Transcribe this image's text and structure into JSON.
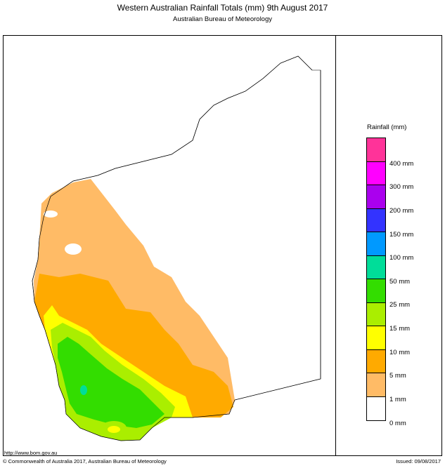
{
  "header": {
    "title": "Western Australian Rainfall Totals (mm) 9th August 2017",
    "subtitle": "Australian Bureau of Meteorology"
  },
  "legend": {
    "title": "Rainfall (mm)",
    "levels": [
      {
        "label": "400 mm",
        "color": "#ff3399"
      },
      {
        "label": "300 mm",
        "color": "#ff00ff"
      },
      {
        "label": "200 mm",
        "color": "#aa00ee"
      },
      {
        "label": "150 mm",
        "color": "#3333ff"
      },
      {
        "label": "100 mm",
        "color": "#0099ff"
      },
      {
        "label": "50 mm",
        "color": "#00dd99"
      },
      {
        "label": "25 mm",
        "color": "#33dd00"
      },
      {
        "label": "15 mm",
        "color": "#aaee00"
      },
      {
        "label": "10 mm",
        "color": "#ffff00"
      },
      {
        "label": "5 mm",
        "color": "#ffaa00"
      },
      {
        "label": "1 mm",
        "color": "#ffbb66"
      },
      {
        "label": "0 mm",
        "color": "#ffffff"
      }
    ]
  },
  "footer": {
    "url": "http://www.bom.gov.au",
    "copyright": "© Commonwealth of Australia 2017, Australian Bureau of Meteorology",
    "issued": "Issued: 09/08/2017"
  }
}
